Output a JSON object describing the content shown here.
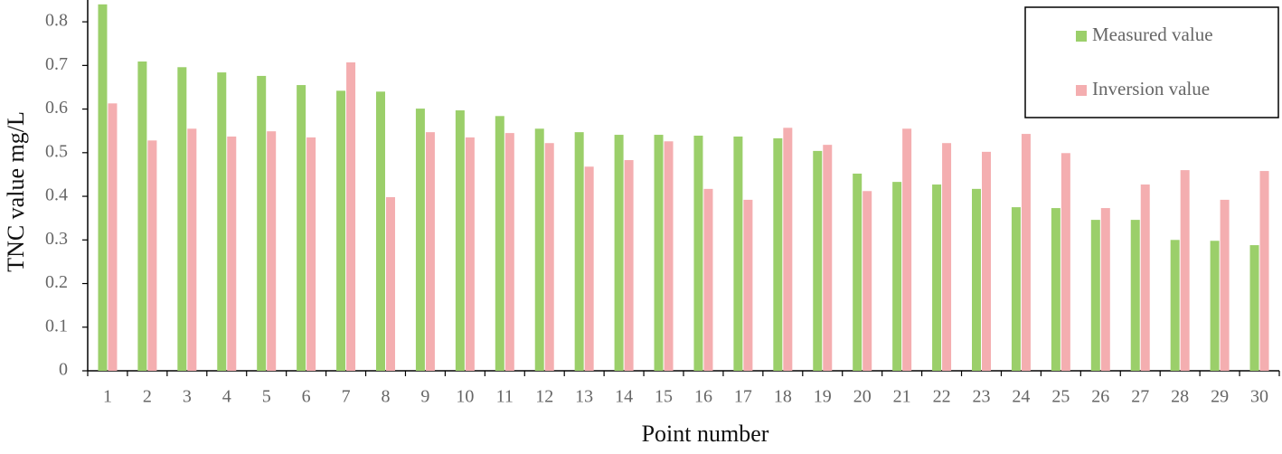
{
  "chart_data": {
    "type": "bar",
    "x_label": "Point number",
    "y_label": "TNC value mg/L",
    "categories": [
      "1",
      "2",
      "3",
      "4",
      "5",
      "6",
      "7",
      "8",
      "9",
      "10",
      "11",
      "12",
      "13",
      "14",
      "15",
      "16",
      "17",
      "18",
      "19",
      "20",
      "21",
      "22",
      "23",
      "24",
      "25",
      "26",
      "27",
      "28",
      "29",
      "30"
    ],
    "series": [
      {
        "name": "Measured value",
        "color": "#9bcf6a",
        "values": [
          0.84,
          0.709,
          0.696,
          0.684,
          0.676,
          0.655,
          0.642,
          0.64,
          0.601,
          0.597,
          0.584,
          0.555,
          0.547,
          0.541,
          0.541,
          0.539,
          0.537,
          0.533,
          0.504,
          0.452,
          0.433,
          0.427,
          0.417,
          0.375,
          0.373,
          0.346,
          0.346,
          0.3,
          0.298,
          0.288
        ]
      },
      {
        "name": "Inversion value",
        "color": "#f4aeb0",
        "values": [
          0.613,
          0.528,
          0.555,
          0.537,
          0.549,
          0.535,
          0.707,
          0.398,
          0.547,
          0.535,
          0.545,
          0.522,
          0.468,
          0.483,
          0.526,
          0.417,
          0.392,
          0.557,
          0.518,
          0.412,
          0.555,
          0.522,
          0.502,
          0.543,
          0.499,
          0.373,
          0.427,
          0.46,
          0.392,
          0.458
        ]
      }
    ],
    "ylim": [
      0,
      0.85
    ],
    "yticks": [
      0,
      0.1,
      0.2,
      0.3,
      0.4,
      0.5,
      0.6,
      0.7,
      0.8
    ],
    "grid": false,
    "legend": "upper right"
  }
}
